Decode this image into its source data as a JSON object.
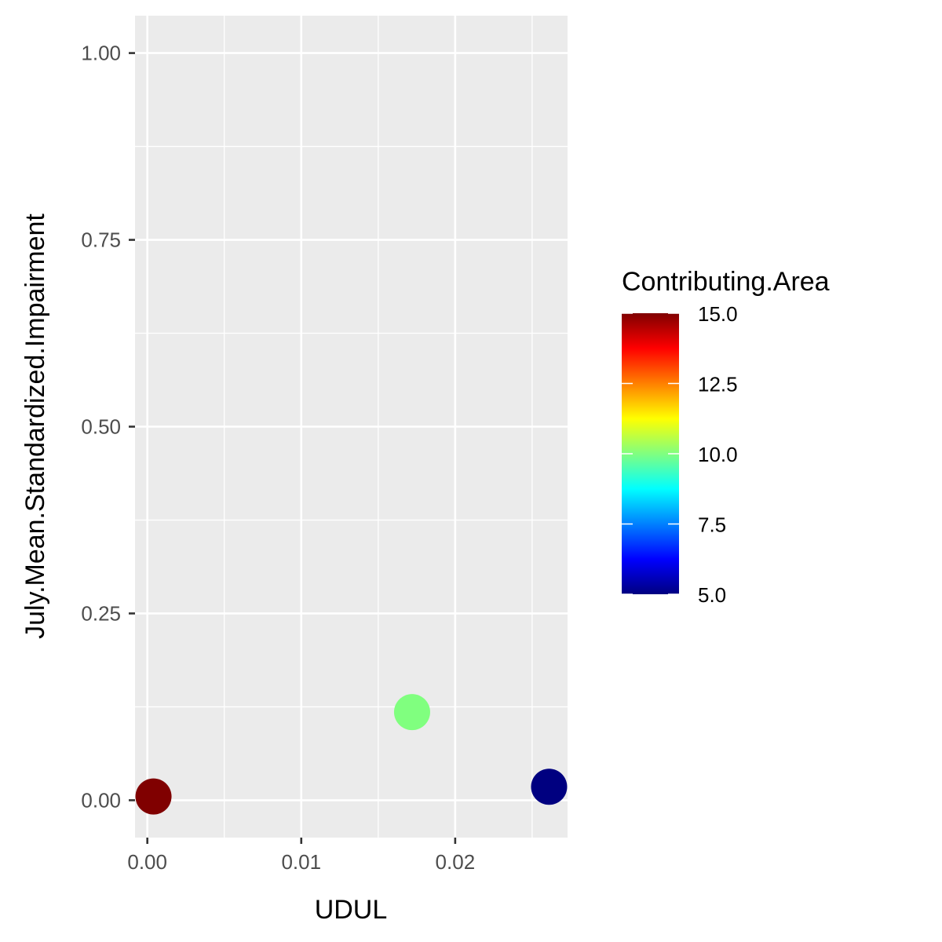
{
  "chart_data": {
    "type": "scatter",
    "xlabel": "UDUL",
    "ylabel": "July.Mean.Standardized.Impairment",
    "xlim": [
      -0.0008,
      0.0273
    ],
    "ylim": [
      -0.05,
      1.05
    ],
    "x_ticks": [
      0.0,
      0.01,
      0.02
    ],
    "x_tick_labels": [
      "0.00",
      "0.01",
      "0.02"
    ],
    "y_ticks": [
      0.0,
      0.25,
      0.5,
      0.75,
      1.0
    ],
    "y_tick_labels": [
      "0.00",
      "0.25",
      "0.50",
      "0.75",
      "1.00"
    ],
    "grid": true,
    "panel_background": "#ebebeb",
    "points": [
      {
        "x": 0.0004,
        "y": 0.005,
        "contributing_area": 15.0,
        "color": "#800000"
      },
      {
        "x": 0.0172,
        "y": 0.118,
        "contributing_area": 10.0,
        "color": "#80ff7f"
      },
      {
        "x": 0.0261,
        "y": 0.018,
        "contributing_area": 5.0,
        "color": "#000080"
      }
    ],
    "legend": {
      "title": "Contributing.Area",
      "placement": "right",
      "range": [
        5.0,
        15.0
      ],
      "ticks": [
        15.0,
        12.5,
        10.0,
        7.5,
        5.0
      ],
      "tick_labels": [
        "15.0",
        "12.5",
        "10.0",
        "7.5",
        "5.0"
      ],
      "colormap": [
        "#000080",
        "#0000ff",
        "#0080ff",
        "#00ffff",
        "#80ff80",
        "#ffff00",
        "#ff8000",
        "#ff0000",
        "#800000"
      ]
    }
  }
}
